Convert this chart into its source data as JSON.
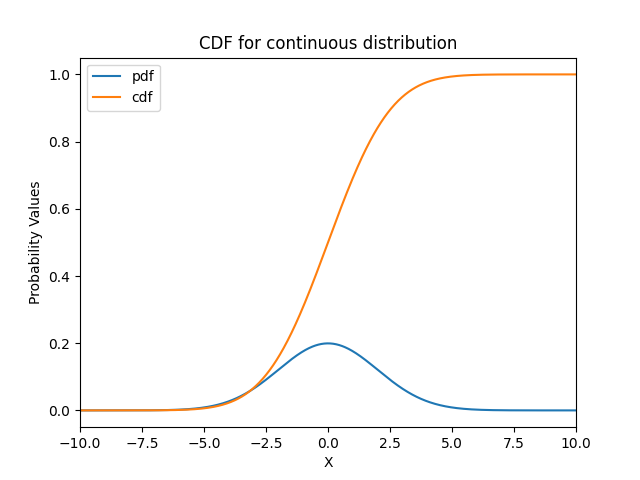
{
  "title": "CDF for continuous distribution",
  "xlabel": "X",
  "ylabel": "Probability Values",
  "x_min": -10.0,
  "x_max": 10.0,
  "mean": 0.0,
  "std": 2.0,
  "pdf_label": "pdf",
  "cdf_label": "cdf",
  "pdf_color": "#1f77b4",
  "cdf_color": "#ff7f0e",
  "figsize": [
    6.4,
    4.8
  ],
  "dpi": 100,
  "num_points": 1000
}
